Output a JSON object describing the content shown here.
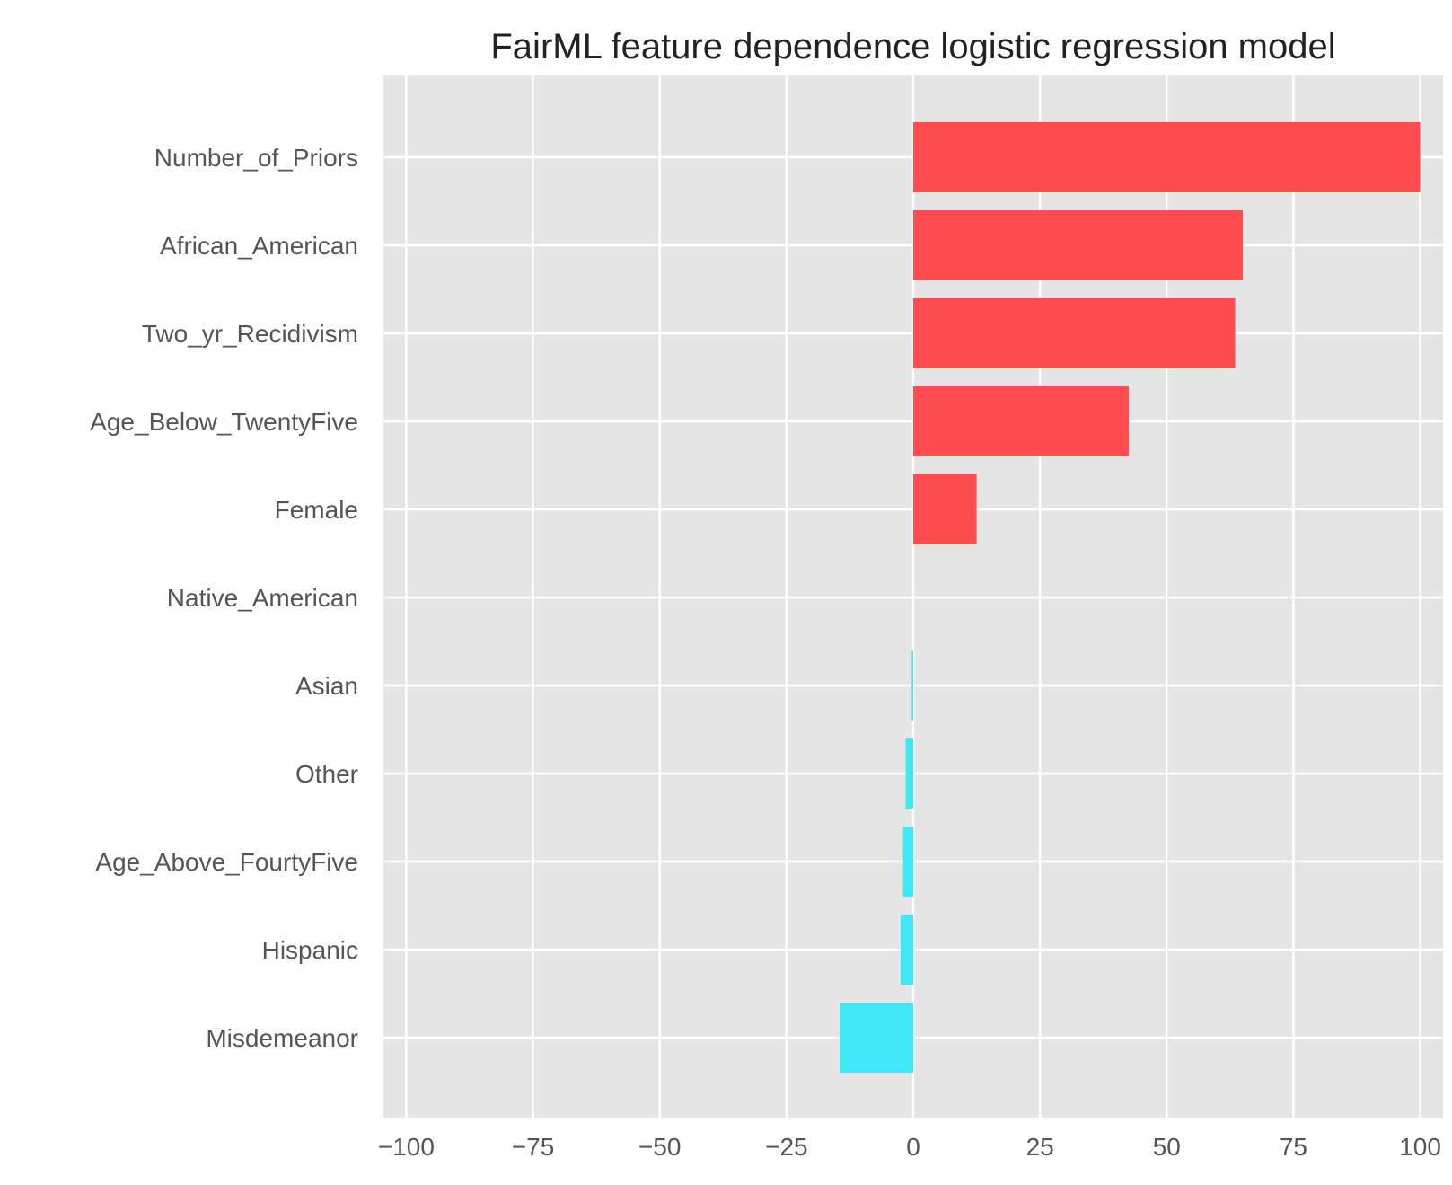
{
  "chart_data": {
    "type": "bar",
    "orientation": "horizontal",
    "title": "FairML feature dependence logistic regression model",
    "xlabel": "",
    "ylabel": "",
    "xlim": [
      -104.5,
      104.5
    ],
    "xticks": [
      -100,
      -75,
      -50,
      -25,
      0,
      25,
      50,
      75,
      100
    ],
    "xtick_labels": [
      "−100",
      "−75",
      "−50",
      "−25",
      "0",
      "25",
      "50",
      "75",
      "100"
    ],
    "grid": true,
    "legend": "none",
    "categories": [
      "Number_of_Priors",
      "African_American",
      "Two_yr_Recidivism",
      "Age_Below_TwentyFive",
      "Female",
      "Native_American",
      "Asian",
      "Other",
      "Age_Above_FourtyFive",
      "Hispanic",
      "Misdemeanor"
    ],
    "values": [
      100,
      65,
      63.5,
      42.5,
      12.5,
      0,
      -0.3,
      -1.5,
      -2,
      -2.5,
      -14.5
    ],
    "colors": {
      "positive": "#ff4d4f",
      "negative": "#3ee8f5",
      "background": "#e5e5e5",
      "grid": "#ffffff"
    }
  }
}
